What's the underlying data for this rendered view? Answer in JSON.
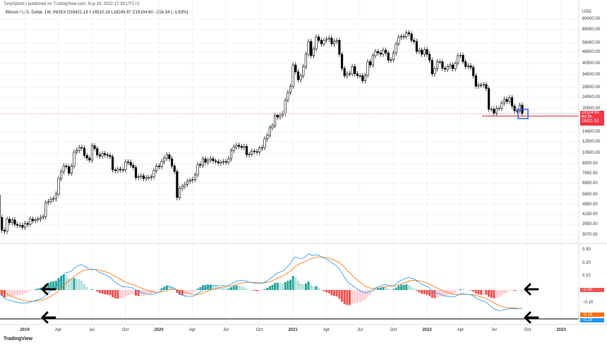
{
  "header": {
    "published": "TonySpilotro published on TradingView.com, Sep 19, 2022 17:39 UTC+2",
    "symbol": "Bitcoin / U.S. Dollar, 1W, INDEX  O19421.18  H19510.18  L18249.97  C19104.60  −316.34 (−1.63%)"
  },
  "price_axis": {
    "currency": "USD",
    "labels": [
      "80000.00",
      "68000.00",
      "56000.00",
      "48500.00",
      "40500.00",
      "34500.00",
      "28500.00",
      "24500.00",
      "20500.00",
      "14500.00",
      "12500.00",
      "10500.00",
      "8900.00",
      "7650.00",
      "6650.00",
      "5650.00",
      "4850.00",
      "4150.00",
      "3550.00",
      "3070.00"
    ],
    "last_price": "19104.60",
    "countdown": "6d 9h",
    "level": "18311.52",
    "last_color": "#f23645"
  },
  "macd_axis": {
    "labels": [
      "0.30",
      "0.20",
      "0.10",
      "−0.10"
    ],
    "hist_tag": "−0.00",
    "signal_tag": "−0.19",
    "macd_tag": "−0.19",
    "hist_color": "#ef5350",
    "signal_color": "#ff6d00",
    "macd_color": "#2196f3"
  },
  "time_axis": [
    "2019",
    "Apr",
    "Jul",
    "Oct",
    "2020",
    "Apr",
    "Jul",
    "Oct",
    "2021",
    "Apr",
    "Jul",
    "Oct",
    "2022",
    "Apr",
    "Jul",
    "Oct",
    "2023"
  ],
  "footer": {
    "logo": "TradingView"
  },
  "chart_data": {
    "type": "candlestick",
    "title": "Bitcoin / U.S. Dollar, 1W, INDEX",
    "timeframe": "1W",
    "ylabel": "USD",
    "yscale": "log",
    "ylim": [
      3070,
      80000
    ],
    "first_open": 6300,
    "weekly_closes": [
      5600,
      4000,
      3300,
      3250,
      3900,
      3700,
      3850,
      3600,
      3550,
      3550,
      3450,
      3650,
      3600,
      3900,
      3800,
      3850,
      3900,
      4000,
      4050,
      5000,
      5100,
      5250,
      5300,
      5700,
      7200,
      8000,
      8700,
      8600,
      7800,
      8700,
      10700,
      11000,
      11500,
      11400,
      10200,
      9800,
      9500,
      11800,
      11300,
      10300,
      10100,
      10500,
      10300,
      10200,
      10000,
      8200,
      8100,
      8300,
      8200,
      8200,
      9250,
      9200,
      8800,
      8500,
      7300,
      7400,
      7500,
      7200,
      7300,
      7300,
      7400,
      8100,
      8700,
      8600,
      9300,
      9800,
      10300,
      9700,
      8700,
      8000,
      5400,
      6200,
      6400,
      6600,
      6900,
      7000,
      7100,
      7600,
      8900,
      8800,
      9700,
      9200,
      9500,
      9700,
      9400,
      9300,
      9100,
      9200,
      9300,
      9200,
      9700,
      11000,
      11600,
      11900,
      11700,
      11500,
      11700,
      10300,
      10400,
      10900,
      10800,
      10700,
      11400,
      11500,
      13100,
      13800,
      15500,
      16000,
      18700,
      18200,
      18800,
      19200,
      23500,
      26400,
      29000,
      40000,
      36000,
      32000,
      34000,
      39000,
      47000,
      57000,
      46000,
      51000,
      61000,
      58000,
      55000,
      58000,
      59000,
      60000,
      55000,
      57000,
      58000,
      47000,
      38000,
      34000,
      35000,
      35000,
      39000,
      35000,
      34000,
      34000,
      31500,
      34200,
      42000,
      40000,
      46000,
      49000,
      48000,
      47000,
      50000,
      48000,
      43000,
      43200,
      48000,
      55000,
      61000,
      61500,
      61300,
      65000,
      64000,
      58000,
      57000,
      49000,
      50000,
      47000,
      50500,
      47000,
      43000,
      35000,
      37800,
      42000,
      42000,
      38000,
      37500,
      39000,
      40000,
      37800,
      41000,
      46000,
      46300,
      42000,
      39000,
      39500,
      38500,
      34000,
      29000,
      29500,
      29500,
      29800,
      28000,
      20500,
      20500,
      19300,
      20800,
      20800,
      22500,
      23800,
      23000,
      24400,
      21500,
      20000,
      20000,
      21800,
      19104.6
    ],
    "indicator": "MACD",
    "macd_ylim": [
      -0.22,
      0.33
    ]
  }
}
